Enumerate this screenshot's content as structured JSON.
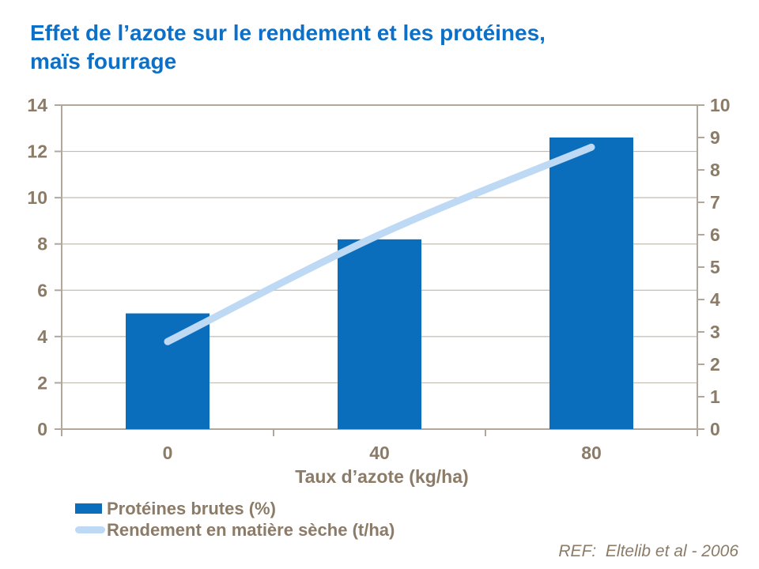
{
  "title": {
    "line1": "Effet de l’azote sur le rendement et les protéines,",
    "line2": "maïs fourrage"
  },
  "chart_data": {
    "type": "bar",
    "subtype": "combo-bar-line-dual-axis",
    "categories": [
      "0",
      "40",
      "80"
    ],
    "series": [
      {
        "name": "Protéines brutes (%)",
        "type": "bar",
        "axis": "left",
        "values": [
          5.0,
          8.2,
          12.6
        ],
        "color": "#0a6ebd"
      },
      {
        "name": "Rendement en matière sèche (t/ha)",
        "type": "line",
        "axis": "right",
        "values": [
          2.7,
          6.0,
          8.7
        ],
        "color": "#bdd9f3",
        "smooth": true
      }
    ],
    "title": "Effet de l’azote sur le rendement et les protéines, maïs fourrage",
    "xlabel": "Taux d’azote (kg/ha)",
    "left_axis": {
      "min": 0,
      "max": 14,
      "step": 2
    },
    "right_axis": {
      "min": 0,
      "max": 10,
      "step": 1
    },
    "grid": true,
    "legend_position": "bottom-left"
  },
  "footer": {
    "ref": "REF:  Eltelib et al - 2006"
  },
  "colors": {
    "title_blue": "#0c70c8",
    "bar_blue": "#0a6ebd",
    "line_blue": "#bdd9f3",
    "axis_text": "#8b7b67",
    "axis_line": "#b1a79a",
    "gridline": "#c3bbb0",
    "background": "#ffffff"
  }
}
